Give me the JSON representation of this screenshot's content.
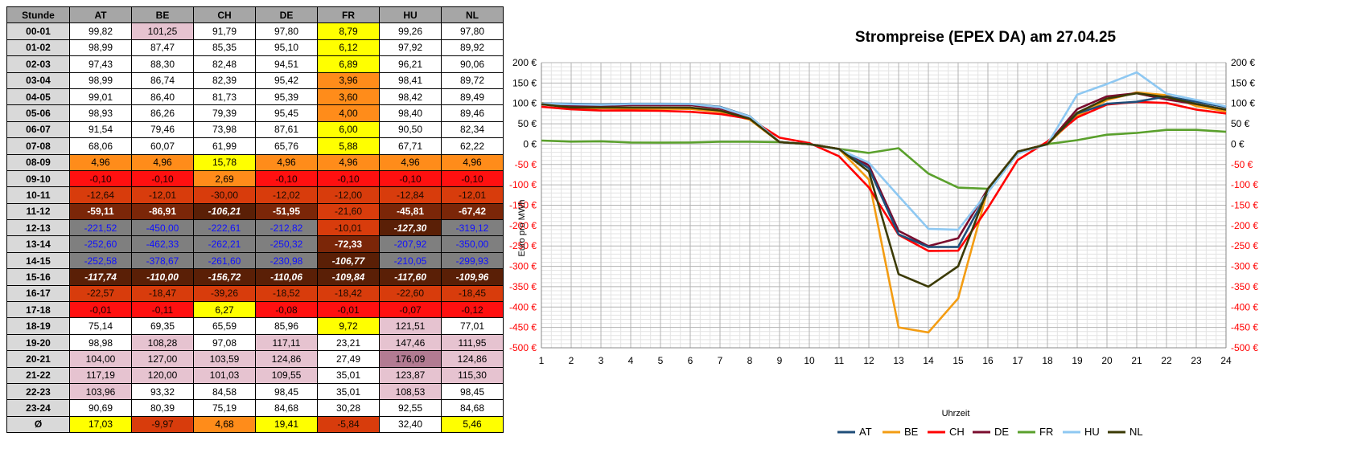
{
  "table": {
    "header": [
      "Stunde",
      "AT",
      "BE",
      "CH",
      "DE",
      "FR",
      "HU",
      "NL"
    ],
    "rows": [
      {
        "hour": "00-01",
        "values": [
          "99,82",
          "101,25",
          "91,79",
          "97,80",
          "8,79",
          "99,26",
          "97,80"
        ]
      },
      {
        "hour": "01-02",
        "values": [
          "98,99",
          "87,47",
          "85,35",
          "95,10",
          "6,12",
          "97,92",
          "89,92"
        ]
      },
      {
        "hour": "02-03",
        "values": [
          "97,43",
          "88,30",
          "82,48",
          "94,51",
          "6,89",
          "96,21",
          "90,06"
        ]
      },
      {
        "hour": "03-04",
        "values": [
          "98,99",
          "86,74",
          "82,39",
          "95,42",
          "3,96",
          "98,41",
          "89,72"
        ]
      },
      {
        "hour": "04-05",
        "values": [
          "99,01",
          "86,40",
          "81,73",
          "95,39",
          "3,60",
          "98,42",
          "89,49"
        ]
      },
      {
        "hour": "05-06",
        "values": [
          "98,93",
          "86,26",
          "79,39",
          "95,45",
          "4,00",
          "98,40",
          "89,46"
        ]
      },
      {
        "hour": "06-07",
        "values": [
          "91,54",
          "79,46",
          "73,98",
          "87,61",
          "6,00",
          "90,50",
          "82,34"
        ]
      },
      {
        "hour": "07-08",
        "values": [
          "68,06",
          "60,07",
          "61,99",
          "65,76",
          "5,88",
          "67,71",
          "62,22"
        ]
      },
      {
        "hour": "08-09",
        "values": [
          "4,96",
          "4,96",
          "15,78",
          "4,96",
          "4,96",
          "4,96",
          "4,96"
        ]
      },
      {
        "hour": "09-10",
        "values": [
          "-0,10",
          "-0,10",
          "2,69",
          "-0,10",
          "-0,10",
          "-0,10",
          "-0,10"
        ]
      },
      {
        "hour": "10-11",
        "values": [
          "-12,64",
          "-12,01",
          "-30,00",
          "-12,02",
          "-12,00",
          "-12,84",
          "-12,01"
        ]
      },
      {
        "hour": "11-12",
        "values": [
          "-59,11",
          "-86,91",
          "-106,21",
          "-51,95",
          "-21,60",
          "-45,81",
          "-67,42"
        ]
      },
      {
        "hour": "12-13",
        "values": [
          "-221,52",
          "-450,00",
          "-222,61",
          "-212,82",
          "-10,01",
          "-127,30",
          "-319,12"
        ]
      },
      {
        "hour": "13-14",
        "values": [
          "-252,60",
          "-462,33",
          "-262,21",
          "-250,32",
          "-72,33",
          "-207,92",
          "-350,00"
        ]
      },
      {
        "hour": "14-15",
        "values": [
          "-252,58",
          "-378,67",
          "-261,60",
          "-230,98",
          "-106,77",
          "-210,05",
          "-299,93"
        ]
      },
      {
        "hour": "15-16",
        "values": [
          "-117,74",
          "-110,00",
          "-156,72",
          "-110,06",
          "-109,84",
          "-117,60",
          "-109,96"
        ]
      },
      {
        "hour": "16-17",
        "values": [
          "-22,57",
          "-18,47",
          "-39,26",
          "-18,52",
          "-18,42",
          "-22,60",
          "-18,45"
        ]
      },
      {
        "hour": "17-18",
        "values": [
          "-0,01",
          "-0,11",
          "6,27",
          "-0,08",
          "-0,01",
          "-0,07",
          "-0,12"
        ]
      },
      {
        "hour": "18-19",
        "values": [
          "75,14",
          "69,35",
          "65,59",
          "85,96",
          "9,72",
          "121,51",
          "77,01"
        ]
      },
      {
        "hour": "19-20",
        "values": [
          "98,98",
          "108,28",
          "97,08",
          "117,11",
          "23,21",
          "147,46",
          "111,95"
        ]
      },
      {
        "hour": "20-21",
        "values": [
          "104,00",
          "127,00",
          "103,59",
          "124,86",
          "27,49",
          "176,09",
          "124,86"
        ]
      },
      {
        "hour": "21-22",
        "values": [
          "117,19",
          "120,00",
          "101,03",
          "109,55",
          "35,01",
          "123,87",
          "115,30"
        ]
      },
      {
        "hour": "22-23",
        "values": [
          "103,96",
          "93,32",
          "84,58",
          "98,45",
          "35,01",
          "108,53",
          "98,45"
        ]
      },
      {
        "hour": "23-24",
        "values": [
          "90,69",
          "80,39",
          "75,19",
          "84,68",
          "30,28",
          "92,55",
          "84,68"
        ]
      },
      {
        "hour": "Ø",
        "values": [
          "17,03",
          "-9,97",
          "4,68",
          "19,41",
          "-5,84",
          "32,40",
          "5,46"
        ]
      }
    ]
  },
  "chart_data": {
    "type": "line",
    "title": "Strompreise (EPEX DA) am 27.04.25",
    "xlabel": "Uhrzeit",
    "ylabel": "Euro pro MWh",
    "x": [
      1,
      2,
      3,
      4,
      5,
      6,
      7,
      8,
      9,
      10,
      11,
      12,
      13,
      14,
      15,
      16,
      17,
      18,
      19,
      20,
      21,
      22,
      23,
      24
    ],
    "ylim": [
      -500,
      200
    ],
    "ytick_step": 50,
    "ytick_suffix": " €",
    "grid": true,
    "legend_position": "bottom",
    "series": [
      {
        "name": "AT",
        "color": "#1f4e79",
        "values": [
          99.82,
          98.99,
          97.43,
          98.99,
          99.01,
          98.93,
          91.54,
          68.06,
          4.96,
          -0.1,
          -12.64,
          -59.11,
          -221.52,
          -252.6,
          -252.58,
          -117.74,
          -22.57,
          -0.01,
          75.14,
          98.98,
          104.0,
          117.19,
          103.96,
          90.69
        ]
      },
      {
        "name": "BE",
        "color": "#f39c12",
        "values": [
          101.25,
          87.47,
          88.3,
          86.74,
          86.4,
          86.26,
          79.46,
          60.07,
          4.96,
          -0.1,
          -12.01,
          -86.91,
          -450.0,
          -462.33,
          -378.67,
          -110.0,
          -18.47,
          -0.11,
          69.35,
          108.28,
          127.0,
          120.0,
          93.32,
          80.39
        ]
      },
      {
        "name": "CH",
        "color": "#ff0000",
        "values": [
          91.79,
          85.35,
          82.48,
          82.39,
          81.73,
          79.39,
          73.98,
          61.99,
          15.78,
          2.69,
          -30.0,
          -106.21,
          -222.61,
          -262.21,
          -261.6,
          -156.72,
          -39.26,
          6.27,
          65.59,
          97.08,
          103.59,
          101.03,
          84.58,
          75.19
        ]
      },
      {
        "name": "DE",
        "color": "#7a0c2e",
        "values": [
          97.8,
          95.1,
          94.51,
          95.42,
          95.39,
          95.45,
          87.61,
          65.76,
          4.96,
          -0.1,
          -12.02,
          -51.95,
          -212.82,
          -250.32,
          -230.98,
          -110.06,
          -18.52,
          -0.08,
          85.96,
          117.11,
          124.86,
          109.55,
          98.45,
          84.68
        ]
      },
      {
        "name": "FR",
        "color": "#5aa02c",
        "values": [
          8.79,
          6.12,
          6.89,
          3.96,
          3.6,
          4.0,
          6.0,
          5.88,
          4.96,
          -0.1,
          -12.0,
          -21.6,
          -10.01,
          -72.33,
          -106.77,
          -109.84,
          -18.42,
          -0.01,
          9.72,
          23.21,
          27.49,
          35.01,
          35.01,
          30.28
        ]
      },
      {
        "name": "HU",
        "color": "#8ec8f2",
        "values": [
          99.26,
          97.92,
          96.21,
          98.41,
          98.42,
          98.4,
          90.5,
          67.71,
          4.96,
          -0.1,
          -12.84,
          -45.81,
          -127.3,
          -207.92,
          -210.05,
          -117.6,
          -22.6,
          -0.07,
          121.51,
          147.46,
          176.09,
          123.87,
          108.53,
          92.55
        ]
      },
      {
        "name": "NL",
        "color": "#3b3a05",
        "values": [
          97.8,
          89.92,
          90.06,
          89.72,
          89.49,
          89.46,
          82.34,
          62.22,
          4.96,
          -0.1,
          -12.01,
          -67.42,
          -319.12,
          -350.0,
          -299.93,
          -109.96,
          -18.45,
          -0.12,
          77.01,
          111.95,
          124.86,
          115.3,
          98.45,
          84.68
        ]
      }
    ]
  }
}
